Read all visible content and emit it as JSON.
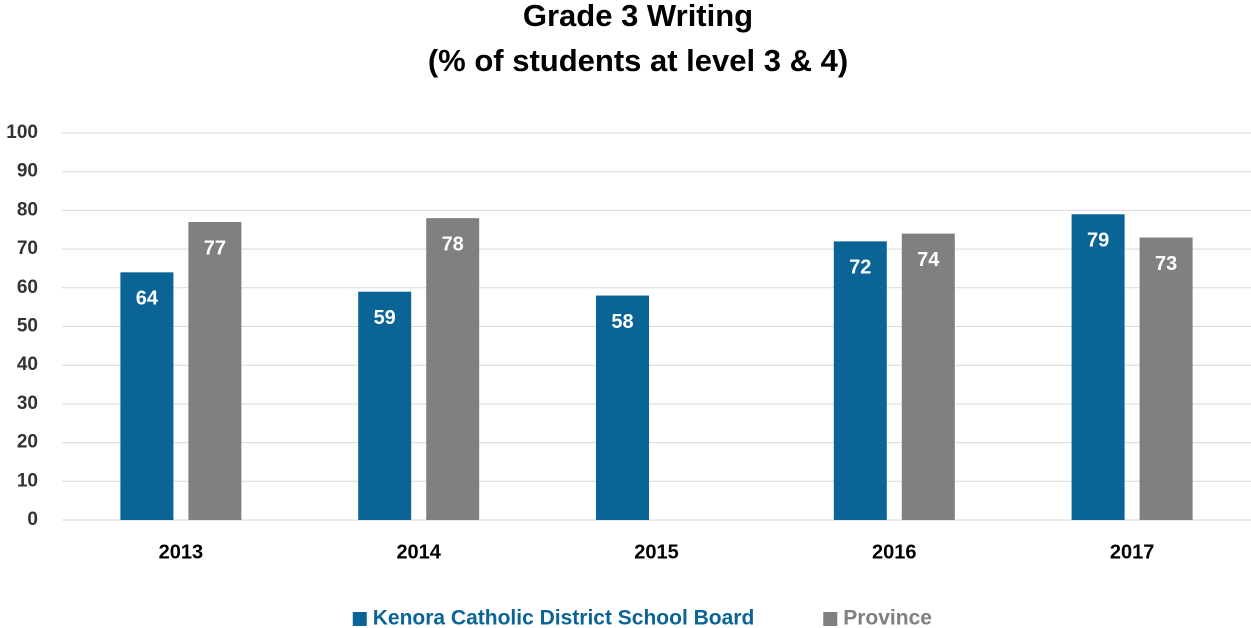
{
  "chart_data": {
    "type": "bar",
    "title": "Grade 3 Writing",
    "subtitle": "(% of students at level 3 & 4)",
    "categories": [
      "2013",
      "2014",
      "2015",
      "2016",
      "2017"
    ],
    "series": [
      {
        "name": "Kenora Catholic District School Board",
        "color": "#0a6496",
        "values": [
          64,
          59,
          58,
          72,
          79
        ]
      },
      {
        "name": "Province",
        "color": "#808080",
        "values": [
          77,
          78,
          null,
          74,
          73
        ]
      }
    ],
    "ylim": [
      0,
      100
    ],
    "yticks": [
      0,
      10,
      20,
      30,
      40,
      50,
      60,
      70,
      80,
      90,
      100
    ],
    "grid": true,
    "legend": "bottom"
  }
}
